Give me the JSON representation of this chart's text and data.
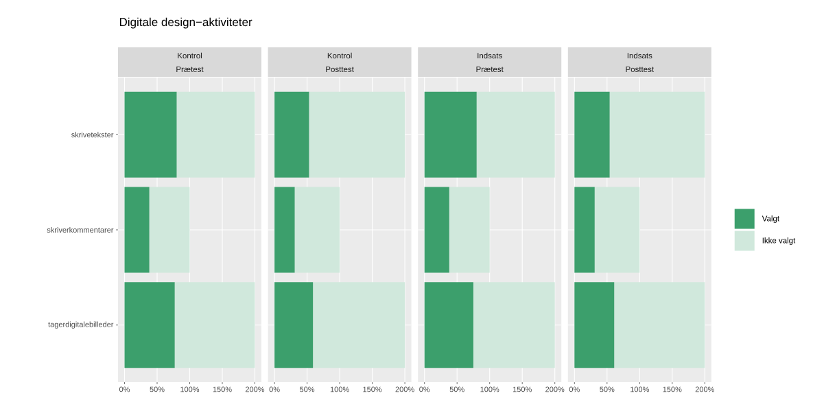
{
  "chart_data": [
    {
      "type": "bar",
      "orientation": "horizontal",
      "stacked": true,
      "title": "Kontrol",
      "subtitle": "Prætest",
      "annotations": [
        "Digitale design−aktiviteter"
      ],
      "categories": [
        "skrivetekster",
        "skriverkommentarer",
        "tagerdigitalebilleder"
      ],
      "series": [
        {
          "color": "#3c9f6c",
          "values": [
            80,
            38,
            77
          ]
        },
        {
          "color": "#d0e8dc",
          "values": [
            120,
            62,
            123
          ]
        }
      ],
      "xlim": [
        -10,
        210
      ],
      "xticks": [
        {
          "value": 0,
          "label": "0%"
        },
        {
          "value": 50,
          "label": "50%"
        },
        {
          "value": 100,
          "label": "100%"
        },
        {
          "value": 150,
          "label": "150%"
        },
        {
          "value": 200,
          "label": "200%"
        }
      ],
      "grid": true,
      "legend": false
    },
    {
      "type": "bar",
      "orientation": "horizontal",
      "stacked": true,
      "title": "Kontrol",
      "subtitle": "Posttest",
      "categories": [
        null,
        null,
        null
      ],
      "series": [
        {
          "color": "#3c9f6c",
          "values": [
            53,
            31,
            59
          ]
        },
        {
          "color": "#d0e8dc",
          "values": [
            147,
            69,
            141
          ]
        }
      ],
      "xlim": [
        -10,
        210
      ],
      "xticks": [
        {
          "value": 0,
          "label": "0%"
        },
        {
          "value": 50,
          "label": "50%"
        },
        {
          "value": 100,
          "label": "100%"
        },
        {
          "value": 150,
          "label": "150%"
        },
        {
          "value": 200,
          "label": "200%"
        }
      ],
      "grid": true,
      "legend": false,
      "tick_labels": "x"
    },
    {
      "type": "bar",
      "orientation": "horizontal",
      "stacked": true,
      "title": "Indsats",
      "subtitle": "Prætest",
      "categories": [
        null,
        null,
        null
      ],
      "series": [
        {
          "color": "#3c9f6c",
          "values": [
            80,
            38,
            75
          ]
        },
        {
          "color": "#d0e8dc",
          "values": [
            120,
            62,
            125
          ]
        }
      ],
      "xlim": [
        -10,
        210
      ],
      "xticks": [
        {
          "value": 0,
          "label": "0%"
        },
        {
          "value": 50,
          "label": "50%"
        },
        {
          "value": 100,
          "label": "100%"
        },
        {
          "value": 150,
          "label": "150%"
        },
        {
          "value": 200,
          "label": "200%"
        }
      ],
      "grid": true,
      "legend": false,
      "tick_labels": "x"
    },
    {
      "type": "bar",
      "orientation": "horizontal",
      "stacked": true,
      "title": "Indsats",
      "subtitle": "Posttest",
      "categories": [
        null,
        null,
        null
      ],
      "series": [
        {
          "name": "Valgt",
          "color": "#3c9f6c",
          "values": [
            54,
            31,
            61
          ]
        },
        {
          "name": "Ikke valgt",
          "color": "#d0e8dc",
          "values": [
            146,
            69,
            139
          ]
        }
      ],
      "xlim": [
        -10,
        210
      ],
      "xticks": [
        {
          "value": 0,
          "label": "0%"
        },
        {
          "value": 50,
          "label": "50%"
        },
        {
          "value": 100,
          "label": "100%"
        },
        {
          "value": 150,
          "label": "150%"
        },
        {
          "value": 200,
          "label": "200%"
        }
      ],
      "grid": true,
      "legend": "right",
      "tick_labels": "x"
    }
  ]
}
